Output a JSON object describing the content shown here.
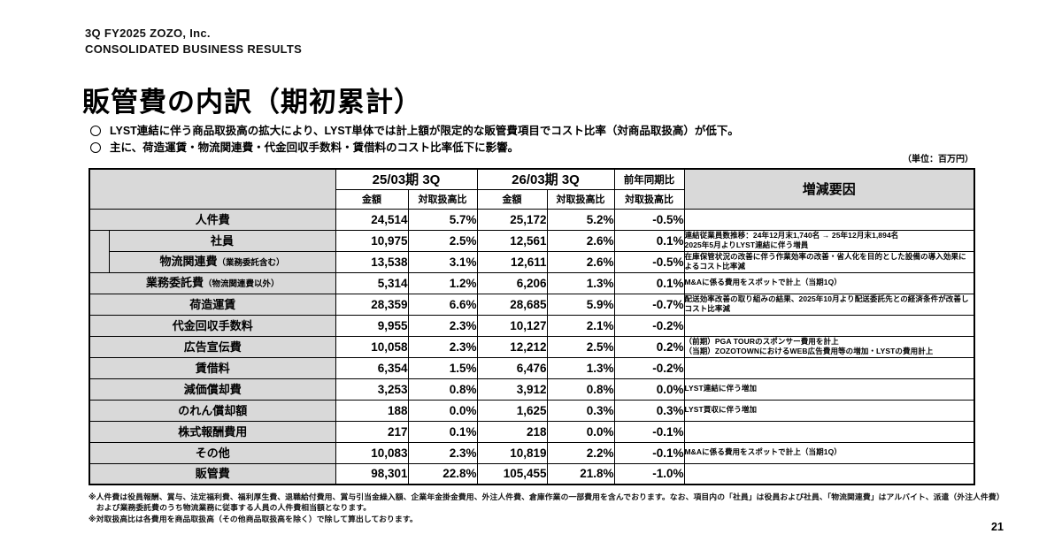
{
  "page": {
    "eyebrow_line1": "3Q FY2025 ZOZO, Inc.",
    "eyebrow_line2": "CONSOLIDATED BUSINESS RESULTS",
    "title": "販管費の内訳（期初累計）",
    "bullets": [
      "LYST連結に伴う商品取扱高の拡大により、LYST単体では計上額が限定的な販管費項目でコスト比率（対商品取扱高）が低下。",
      "主に、荷造運賃・物流関連費・代金回収手数料・賃借料のコスト比率低下に影響。"
    ],
    "unit_note": "（単位：百万円）",
    "footnotes": [
      "※人件費は役員報酬、賞与、法定福利費、福利厚生費、退職給付費用、賞与引当金繰入額、企業年金掛金費用、外注人件費、倉庫作業の一部費用を含んでおります。なお、項目内の「社員」は役員および社員、「物流関連費」はアルバイト、派遣（外注人件費）",
      "　および業務委託費のうち物流業務に従事する人員の人件費相当額となります。",
      "※対取扱高比は各費用を商品取扱高（その他商品取扱高を除く）で除して算出しております。"
    ],
    "page_number": "21"
  },
  "table": {
    "header": {
      "period_prior": "25/03期 3Q",
      "period_current": "26/03期 3Q",
      "yoy": "前年同期比",
      "amount": "金額",
      "ratio": "対取扱高比",
      "reason": "増減要因"
    },
    "rows": [
      {
        "label": "人件費",
        "label_note": "",
        "indent": false,
        "py_amount": "24,514",
        "py_ratio": "5.7%",
        "cy_amount": "25,172",
        "cy_ratio": "5.2%",
        "yoy": "-0.5%",
        "reason": ""
      },
      {
        "label": "社員",
        "label_note": "",
        "indent": true,
        "py_amount": "10,975",
        "py_ratio": "2.5%",
        "cy_amount": "12,561",
        "cy_ratio": "2.6%",
        "yoy": "0.1%",
        "reason": "連結従業員数推移：24年12月末1,740名 → 25年12月末1,894名\n2025年5月よりLYST連結に伴う増員"
      },
      {
        "label": "物流関連費",
        "label_note": "（業務委託含む）",
        "indent": true,
        "py_amount": "13,538",
        "py_ratio": "3.1%",
        "cy_amount": "12,611",
        "cy_ratio": "2.6%",
        "yoy": "-0.5%",
        "reason": "在庫保管状況の改善に伴う作業効率の改善・省人化を目的とした設備の導入効果によるコスト比率減"
      },
      {
        "label": "業務委託費",
        "label_note": "（物流関連費以外）",
        "indent": false,
        "py_amount": "5,314",
        "py_ratio": "1.2%",
        "cy_amount": "6,206",
        "cy_ratio": "1.3%",
        "yoy": "0.1%",
        "reason": "M&Aに係る費用をスポットで計上（当期1Q）"
      },
      {
        "label": "荷造運賃",
        "label_note": "",
        "indent": false,
        "py_amount": "28,359",
        "py_ratio": "6.6%",
        "cy_amount": "28,685",
        "cy_ratio": "5.9%",
        "yoy": "-0.7%",
        "reason": "配送効率改善の取り組みの結果、2025年10月より配送委託先との経済条件が改善しコスト比率減"
      },
      {
        "label": "代金回収手数料",
        "label_note": "",
        "indent": false,
        "py_amount": "9,955",
        "py_ratio": "2.3%",
        "cy_amount": "10,127",
        "cy_ratio": "2.1%",
        "yoy": "-0.2%",
        "reason": ""
      },
      {
        "label": "広告宣伝費",
        "label_note": "",
        "indent": false,
        "py_amount": "10,058",
        "py_ratio": "2.3%",
        "cy_amount": "12,212",
        "cy_ratio": "2.5%",
        "yoy": "0.2%",
        "reason": "（前期）PGA TOURのスポンサー費用を計上\n（当期）ZOZOTOWNにおけるWEB広告費用等の増加・LYSTの費用計上"
      },
      {
        "label": "賃借料",
        "label_note": "",
        "indent": false,
        "py_amount": "6,354",
        "py_ratio": "1.5%",
        "cy_amount": "6,476",
        "cy_ratio": "1.3%",
        "yoy": "-0.2%",
        "reason": ""
      },
      {
        "label": "減価償却費",
        "label_note": "",
        "indent": false,
        "py_amount": "3,253",
        "py_ratio": "0.8%",
        "cy_amount": "3,912",
        "cy_ratio": "0.8%",
        "yoy": "0.0%",
        "reason": "LYST連結に伴う増加"
      },
      {
        "label": "のれん償却額",
        "label_note": "",
        "indent": false,
        "py_amount": "188",
        "py_ratio": "0.0%",
        "cy_amount": "1,625",
        "cy_ratio": "0.3%",
        "yoy": "0.3%",
        "reason": "LYST買収に伴う増加"
      },
      {
        "label": "株式報酬費用",
        "label_note": "",
        "indent": false,
        "py_amount": "217",
        "py_ratio": "0.1%",
        "cy_amount": "218",
        "cy_ratio": "0.0%",
        "yoy": "-0.1%",
        "reason": ""
      },
      {
        "label": "その他",
        "label_note": "",
        "indent": false,
        "py_amount": "10,083",
        "py_ratio": "2.3%",
        "cy_amount": "10,819",
        "cy_ratio": "2.2%",
        "yoy": "-0.1%",
        "reason": "M&Aに係る費用をスポットで計上（当期1Q）"
      },
      {
        "label": "販管費",
        "label_note": "",
        "indent": false,
        "py_amount": "98,301",
        "py_ratio": "22.8%",
        "cy_amount": "105,455",
        "cy_ratio": "21.8%",
        "yoy": "-1.0%",
        "reason": ""
      }
    ]
  }
}
